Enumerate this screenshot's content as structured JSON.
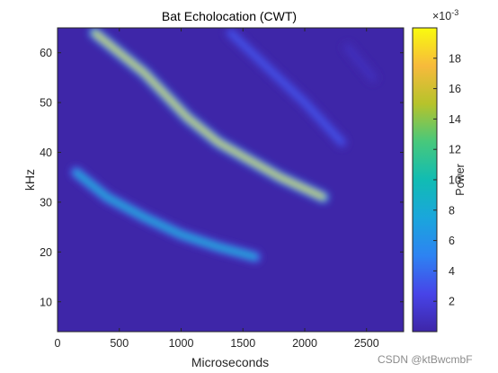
{
  "chart_data": {
    "type": "heatmap",
    "title": "Bat Echolocation (CWT)",
    "xlabel": "Microseconds",
    "ylabel": "kHz",
    "xlim": [
      0,
      2800
    ],
    "ylim": [
      4,
      65
    ],
    "xticks": [
      0,
      500,
      1000,
      1500,
      2000,
      2500
    ],
    "xtick_labels": [
      "0",
      "500",
      "1000",
      "1500",
      "2000",
      "2500"
    ],
    "yticks": [
      10,
      20,
      30,
      40,
      50,
      60
    ],
    "ytick_labels": [
      "10",
      "20",
      "30",
      "40",
      "50",
      "60"
    ],
    "grid": false,
    "colormap": "parula",
    "colorbar": {
      "label": "Power",
      "exponent_label": "×10",
      "exponent_value": "-3",
      "range": [
        0,
        0.02
      ],
      "ticks": [
        2,
        4,
        6,
        8,
        10,
        12,
        14,
        16,
        18
      ],
      "tick_labels": [
        "2",
        "4",
        "6",
        "8",
        "10",
        "12",
        "14",
        "16",
        "18"
      ]
    },
    "features": [
      {
        "path": [
          [
            150,
            36
          ],
          [
            400,
            31
          ],
          [
            700,
            27
          ],
          [
            1000,
            23.5
          ],
          [
            1300,
            21
          ],
          [
            1600,
            19
          ]
        ],
        "peak": 0.0095
      },
      {
        "path": [
          [
            300,
            64
          ],
          [
            700,
            56
          ],
          [
            1050,
            47
          ],
          [
            1300,
            42
          ],
          [
            1550,
            38.5
          ],
          [
            1800,
            35
          ],
          [
            2150,
            31
          ]
        ],
        "peak": 0.0195
      },
      {
        "path": [
          [
            1400,
            64
          ],
          [
            1700,
            57
          ],
          [
            2000,
            50
          ],
          [
            2300,
            42
          ]
        ],
        "peak": 0.0035
      },
      {
        "path": [
          [
            2350,
            61
          ],
          [
            2550,
            55
          ]
        ],
        "peak": 0.001
      }
    ],
    "background_value": 0.0003
  },
  "watermark": "CSDN @ktBwcmbF"
}
